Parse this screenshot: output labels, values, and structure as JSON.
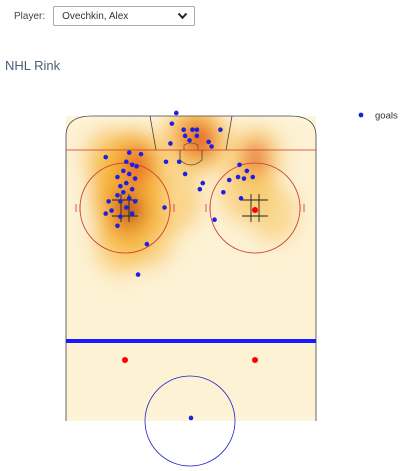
{
  "player_select": {
    "label": "Player:",
    "selected": "Ovechkin, Alex"
  },
  "page_title": "NHL Rink",
  "chart_data": {
    "type": "scatter",
    "title": "NHL Rink",
    "legend": {
      "entries": [
        "goals"
      ],
      "placement": "top-right"
    },
    "colors": {
      "goals": "#1f1fe0",
      "heat_core": "#5a0b0b",
      "heat_mid": "#e0421a",
      "heat_outer": "#f6b73c",
      "rink_line": "#cc3333",
      "blue_line": "#1a1aff",
      "faceoff_dot": "#ff0000"
    },
    "xlim": [
      -42.5,
      42.5
    ],
    "ylim": [
      0,
      100
    ],
    "grid": false,
    "heatmap": [
      {
        "x": -21,
        "y": 80,
        "intensity": 1.0
      },
      {
        "x": -22,
        "y": 74,
        "intensity": 1.0
      },
      {
        "x": -21,
        "y": 68,
        "intensity": 0.9
      },
      {
        "x": -19,
        "y": 84,
        "intensity": 0.6
      },
      {
        "x": 0,
        "y": 93,
        "intensity": 0.55
      },
      {
        "x": 4,
        "y": 92,
        "intensity": 0.45
      },
      {
        "x": 22,
        "y": 86,
        "intensity": 0.4
      },
      {
        "x": 18,
        "y": 75,
        "intensity": 0.25
      },
      {
        "x": -5,
        "y": 72,
        "intensity": 0.3
      },
      {
        "x": -24,
        "y": 58,
        "intensity": 0.35
      },
      {
        "x": -14,
        "y": 60,
        "intensity": 0.25
      },
      {
        "x": 28,
        "y": 68,
        "intensity": 0.2
      },
      {
        "x": -28,
        "y": 86,
        "intensity": 0.3
      }
    ],
    "series": [
      {
        "name": "goals",
        "points": [
          {
            "x": -5,
            "y": 101
          },
          {
            "x": -6.5,
            "y": 97.5
          },
          {
            "x": -2.5,
            "y": 95.5
          },
          {
            "x": 0.5,
            "y": 95.5
          },
          {
            "x": 2,
            "y": 95.5
          },
          {
            "x": -2,
            "y": 93.5
          },
          {
            "x": 2,
            "y": 93.5
          },
          {
            "x": 6,
            "y": 91.5
          },
          {
            "x": -0.5,
            "y": 92
          },
          {
            "x": 10,
            "y": 95.5
          },
          {
            "x": -7,
            "y": 91
          },
          {
            "x": 7,
            "y": 90
          },
          {
            "x": -21,
            "y": 88
          },
          {
            "x": -17,
            "y": 87.5
          },
          {
            "x": -29,
            "y": 86.5
          },
          {
            "x": -22,
            "y": 85
          },
          {
            "x": -20,
            "y": 84
          },
          {
            "x": -18.5,
            "y": 83.5
          },
          {
            "x": -23,
            "y": 82
          },
          {
            "x": -21,
            "y": 81
          },
          {
            "x": -25,
            "y": 80
          },
          {
            "x": -19,
            "y": 79.5
          },
          {
            "x": -22,
            "y": 78
          },
          {
            "x": -24,
            "y": 77
          },
          {
            "x": -20,
            "y": 76
          },
          {
            "x": -23,
            "y": 75
          },
          {
            "x": -25,
            "y": 74
          },
          {
            "x": -21,
            "y": 73
          },
          {
            "x": -19,
            "y": 72
          },
          {
            "x": -24,
            "y": 72
          },
          {
            "x": -28,
            "y": 72
          },
          {
            "x": -22,
            "y": 70
          },
          {
            "x": -27,
            "y": 69
          },
          {
            "x": -20,
            "y": 68
          },
          {
            "x": -24,
            "y": 67
          },
          {
            "x": -29,
            "y": 68
          },
          {
            "x": -25,
            "y": 64
          },
          {
            "x": -8.5,
            "y": 85
          },
          {
            "x": -4,
            "y": 85
          },
          {
            "x": -2,
            "y": 81
          },
          {
            "x": 16.5,
            "y": 84
          },
          {
            "x": 19,
            "y": 82
          },
          {
            "x": 21,
            "y": 80
          },
          {
            "x": 16,
            "y": 80
          },
          {
            "x": 13,
            "y": 79
          },
          {
            "x": 18,
            "y": 79.5
          },
          {
            "x": 17,
            "y": 73
          },
          {
            "x": 11,
            "y": 75
          },
          {
            "x": 8,
            "y": 66
          },
          {
            "x": -9,
            "y": 70
          },
          {
            "x": 4,
            "y": 78
          },
          {
            "x": 3,
            "y": 76
          },
          {
            "x": -15,
            "y": 58
          },
          {
            "x": -18,
            "y": 48
          },
          {
            "x": 0,
            "y": 1
          }
        ]
      }
    ]
  }
}
